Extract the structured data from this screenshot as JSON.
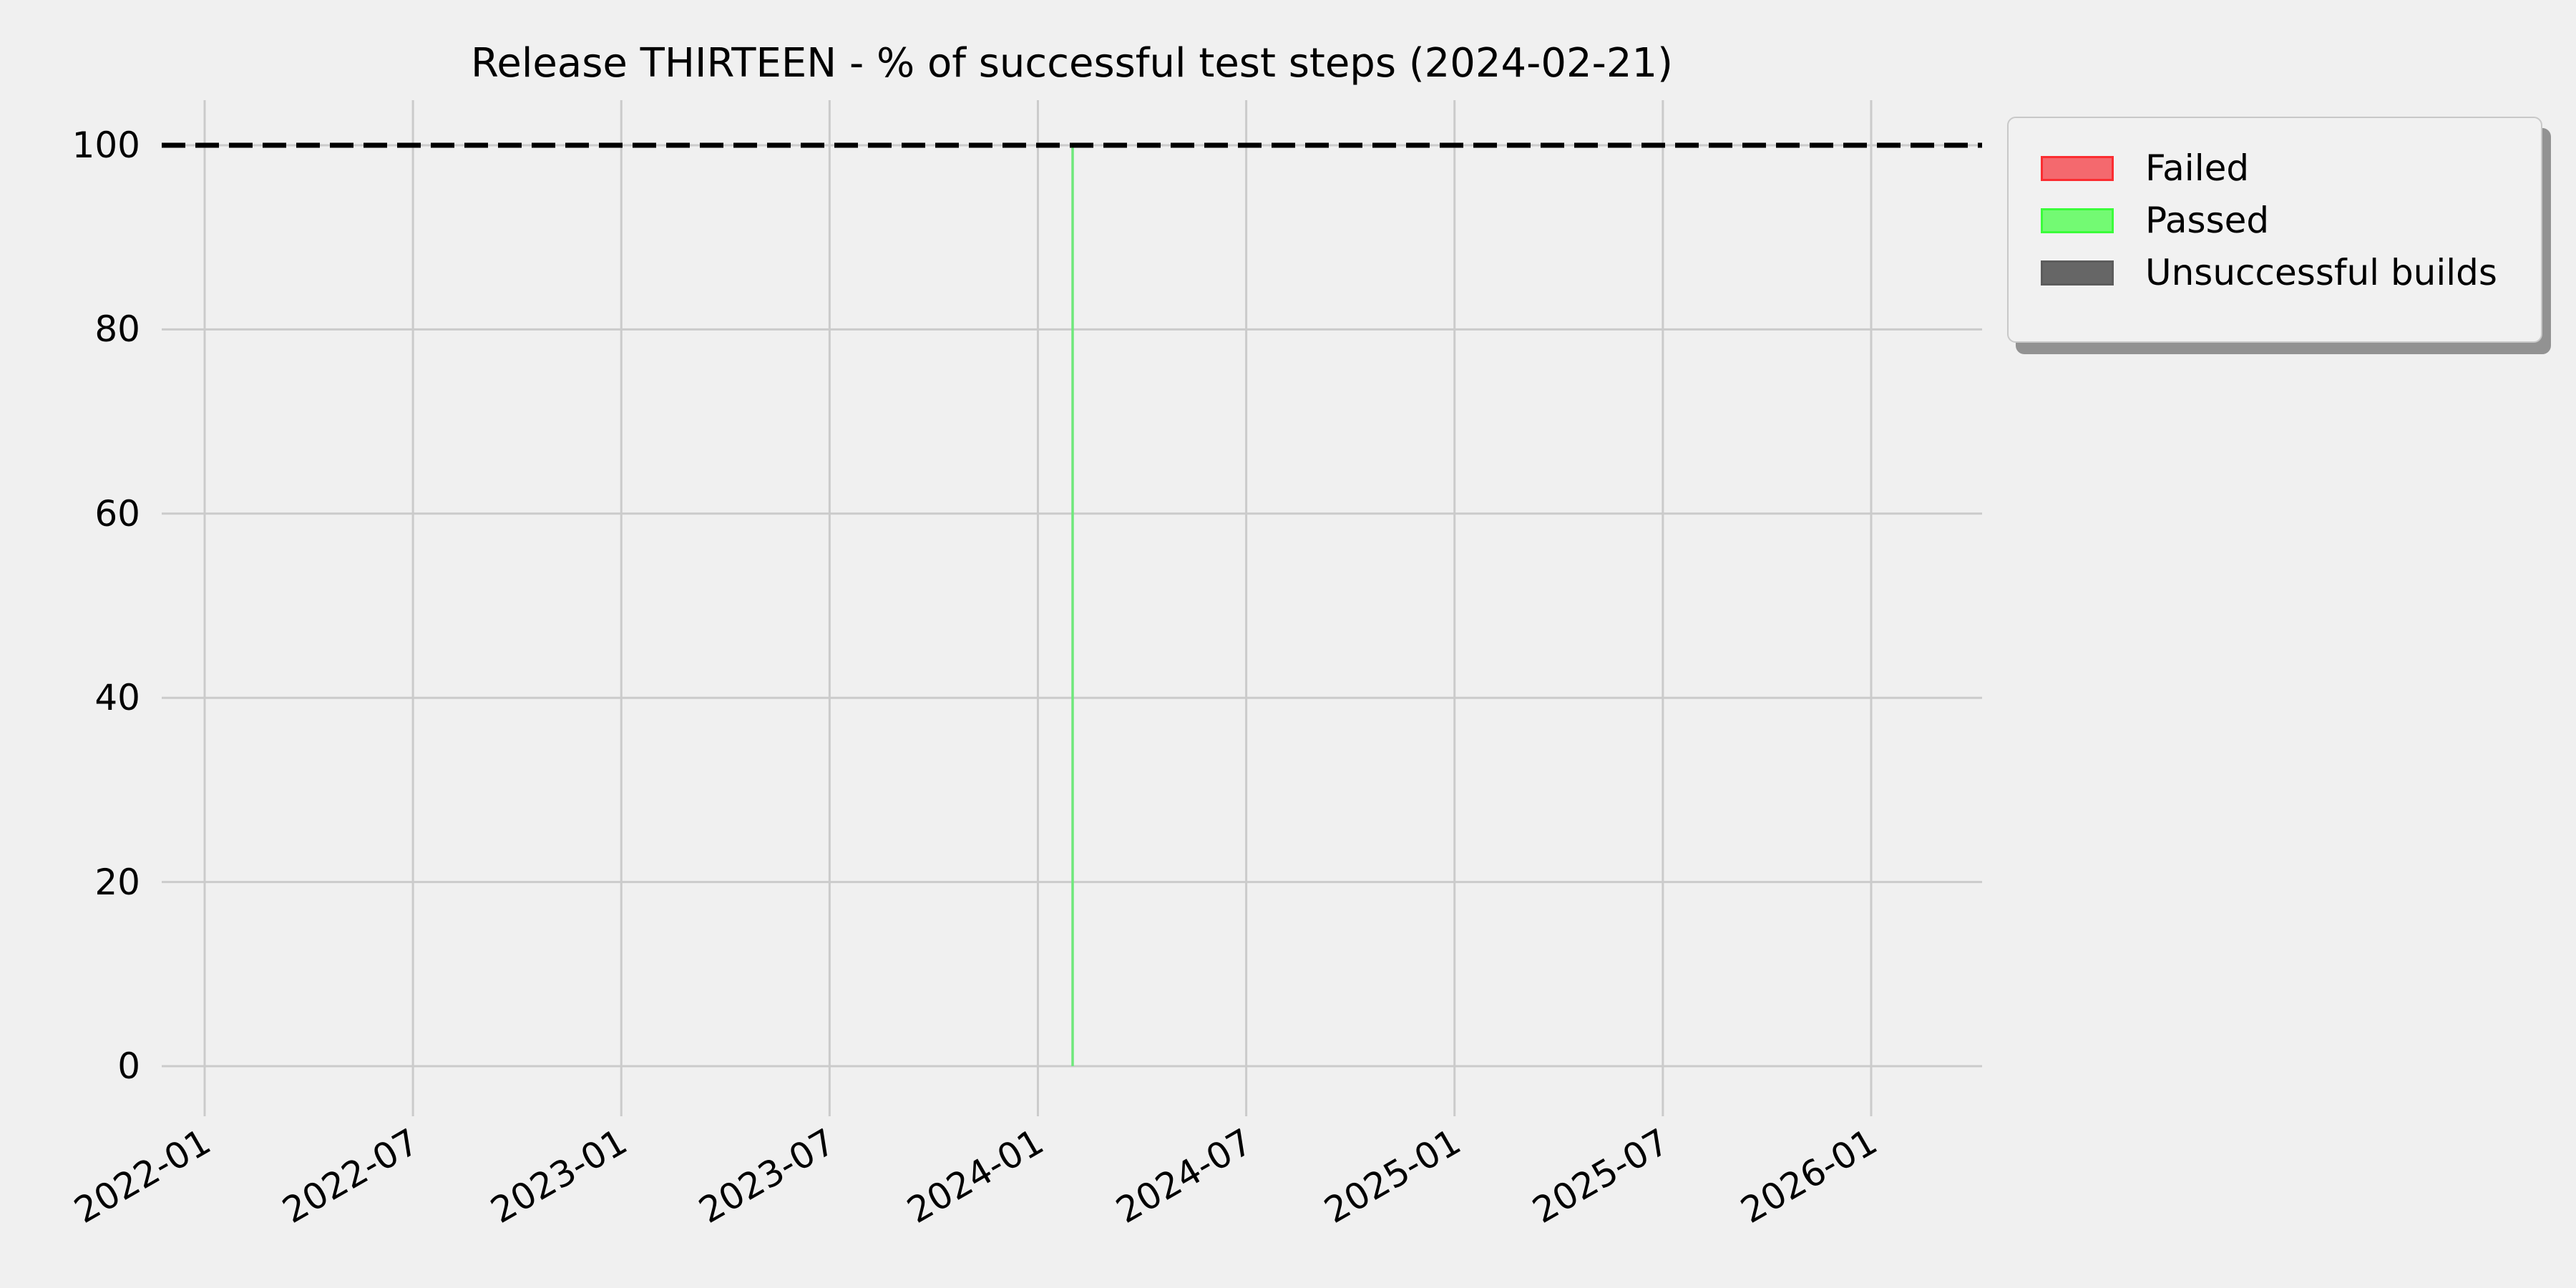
{
  "figure": {
    "background_color": "#f0f0f0",
    "grid_color": "#cbcbcb",
    "text_color": "#000000"
  },
  "chart_data": {
    "type": "bar",
    "title": "Release THIRTEEN - % of successful test steps (2024-02-21)",
    "xlabel": "",
    "ylabel": "",
    "grid": true,
    "x_axis": {
      "ticks": [
        "2022-01",
        "2022-07",
        "2023-01",
        "2023-07",
        "2024-01",
        "2024-07",
        "2025-01",
        "2025-07",
        "2026-01"
      ],
      "range": [
        "2021-12",
        "2026-04"
      ],
      "tick_rotation_deg": 30
    },
    "y_axis": {
      "ticks": [
        0,
        20,
        40,
        60,
        80,
        100
      ],
      "range": [
        -5,
        105
      ],
      "unit": "%"
    },
    "reference_line": {
      "y": 100,
      "style": "dashed",
      "color": "#000000"
    },
    "series": [
      {
        "name": "Failed",
        "fill": "#f4696e",
        "edge": "#fb2d31",
        "values": []
      },
      {
        "name": "Passed",
        "fill": "#73fa73",
        "edge": "#3bfc3b",
        "bar_render_color": "#6fe87b",
        "values": [
          {
            "x": "2024-02",
            "y": 100
          }
        ]
      },
      {
        "name": "Unsuccessful builds",
        "fill": "#666666",
        "edge": "#5c5c5c",
        "values": []
      }
    ],
    "legend": {
      "position": "upper right",
      "shadow": true,
      "entries": [
        "Failed",
        "Passed",
        "Unsuccessful builds"
      ]
    }
  }
}
